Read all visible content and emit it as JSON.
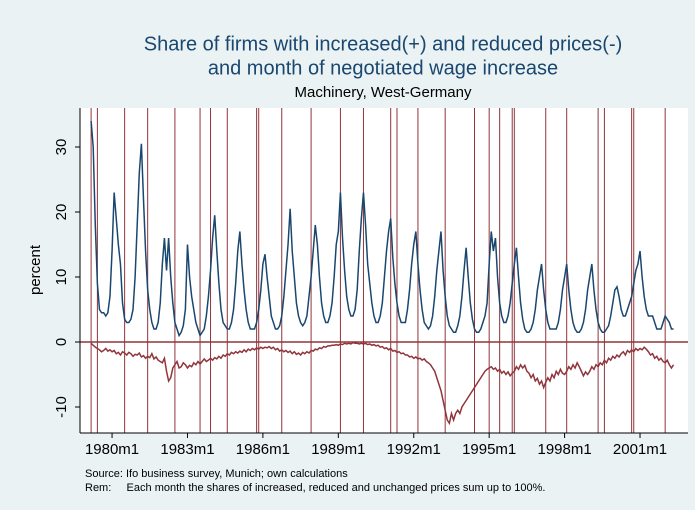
{
  "chart_data": {
    "type": "line",
    "title": [
      "Share of firms with increased(+) and reduced prices(-)",
      "and month of negotiated wage increase"
    ],
    "subtitle": "Machinery, West-Germany",
    "y_label": "percent",
    "notes": [
      "Source: Ifo business survey, Munich; own calculations",
      "Rem:     Each month the shares of increased, reduced and unchanged prices sum up to 100%."
    ],
    "xlim": [
      224.7,
      514.9
    ],
    "xticks": [
      {
        "value": 240,
        "label": "1980m1"
      },
      {
        "value": 276,
        "label": "1983m1"
      },
      {
        "value": 312,
        "label": "1986m1"
      },
      {
        "value": 348,
        "label": "1989m1"
      },
      {
        "value": 384,
        "label": "1992m1"
      },
      {
        "value": 420,
        "label": "1995m1"
      },
      {
        "value": 456,
        "label": "1998m1"
      },
      {
        "value": 492,
        "label": "2001m1"
      }
    ],
    "ylim": [
      -14,
      36
    ],
    "yticks": [
      -10,
      0,
      10,
      20,
      30
    ],
    "grid": false,
    "hline": 0,
    "hline_color": "#90353b",
    "wage_increase_months": [
      230,
      233,
      246,
      257,
      270,
      282,
      287,
      295,
      309,
      310,
      321,
      335,
      349,
      360,
      373,
      376,
      386,
      399,
      413,
      420,
      425,
      431,
      432,
      447,
      457,
      472,
      475,
      488,
      489,
      504
    ],
    "wage_line_color": "#90353b",
    "x": [
      230,
      231,
      232,
      233,
      234,
      235,
      236,
      237,
      238,
      239,
      240,
      241,
      242,
      243,
      244,
      245,
      246,
      247,
      248,
      249,
      250,
      251,
      252,
      253,
      254,
      255,
      256,
      257,
      258,
      259,
      260,
      261,
      262,
      263,
      264,
      265,
      266,
      267,
      268,
      269,
      270,
      271,
      272,
      273,
      274,
      275,
      276,
      277,
      278,
      279,
      280,
      281,
      282,
      283,
      284,
      285,
      286,
      287,
      288,
      289,
      290,
      291,
      292,
      293,
      294,
      295,
      296,
      297,
      298,
      299,
      300,
      301,
      302,
      303,
      304,
      305,
      306,
      307,
      308,
      309,
      310,
      311,
      312,
      313,
      314,
      315,
      316,
      317,
      318,
      319,
      320,
      321,
      322,
      323,
      324,
      325,
      326,
      327,
      328,
      329,
      330,
      331,
      332,
      333,
      334,
      335,
      336,
      337,
      338,
      339,
      340,
      341,
      342,
      343,
      344,
      345,
      346,
      347,
      348,
      349,
      350,
      351,
      352,
      353,
      354,
      355,
      356,
      357,
      358,
      359,
      360,
      361,
      362,
      363,
      364,
      365,
      366,
      367,
      368,
      369,
      370,
      371,
      372,
      373,
      374,
      375,
      376,
      377,
      378,
      379,
      380,
      381,
      382,
      383,
      384,
      385,
      386,
      387,
      388,
      389,
      390,
      391,
      392,
      393,
      394,
      395,
      396,
      397,
      398,
      399,
      400,
      401,
      402,
      403,
      404,
      405,
      406,
      407,
      408,
      409,
      410,
      411,
      412,
      413,
      414,
      415,
      416,
      417,
      418,
      419,
      420,
      421,
      422,
      423,
      424,
      425,
      426,
      427,
      428,
      429,
      430,
      431,
      432,
      433,
      434,
      435,
      436,
      437,
      438,
      439,
      440,
      441,
      442,
      443,
      444,
      445,
      446,
      447,
      448,
      449,
      450,
      451,
      452,
      453,
      454,
      455,
      456,
      457,
      458,
      459,
      460,
      461,
      462,
      463,
      464,
      465,
      466,
      467,
      468,
      469,
      470,
      471,
      472,
      473,
      474,
      475,
      476,
      477,
      478,
      479,
      480,
      481,
      482,
      483,
      484,
      485,
      486,
      487,
      488,
      489,
      490,
      491,
      492,
      493,
      494,
      495,
      496,
      497,
      498,
      499,
      500,
      501,
      502,
      503,
      504,
      505,
      506,
      507,
      508
    ],
    "series": [
      {
        "color": "#1a476f",
        "values": [
          34,
          30,
          18,
          9,
          5,
          4.5,
          4.5,
          4,
          4.5,
          7,
          14,
          23,
          19,
          15,
          12,
          6,
          3.5,
          3,
          3,
          3.5,
          5,
          10,
          18,
          26,
          30.5,
          22,
          14,
          8,
          5,
          3,
          2,
          2,
          3,
          6,
          12,
          16,
          11,
          16,
          10,
          6,
          3,
          2,
          1,
          1.5,
          2.5,
          5,
          15,
          10,
          7,
          5,
          3,
          2,
          1,
          1.5,
          2,
          4,
          7,
          11,
          16,
          19.5,
          14,
          9,
          5,
          3,
          2.5,
          2,
          2,
          3,
          5,
          9,
          14,
          17,
          12,
          8,
          5,
          3,
          2,
          2,
          2,
          3,
          5,
          8,
          12,
          13.5,
          10,
          7,
          4,
          3,
          2,
          2,
          2.5,
          4,
          7,
          11,
          15,
          20.5,
          14,
          10,
          6,
          4,
          3,
          2.5,
          3,
          4,
          7,
          10,
          14,
          18,
          15,
          10,
          6,
          4,
          3,
          3,
          4,
          6,
          10,
          15,
          17,
          23,
          16,
          11,
          7,
          5,
          4,
          4,
          5,
          8,
          14,
          19,
          23,
          18,
          12,
          9,
          6,
          4,
          3,
          3,
          4,
          6,
          10,
          14,
          17,
          19,
          13,
          9,
          6,
          4,
          3,
          3,
          3,
          5,
          8,
          12,
          15,
          17,
          12,
          8,
          5,
          3,
          2.5,
          2,
          2.5,
          4,
          7,
          11,
          14,
          17,
          11,
          7,
          4,
          2.5,
          2,
          1.5,
          1.5,
          2.5,
          4,
          7,
          11,
          14.5,
          10,
          6,
          3.5,
          2,
          1.5,
          1.5,
          2,
          3,
          4,
          6,
          12,
          17,
          14,
          16,
          10,
          6,
          4,
          3,
          3,
          4,
          6,
          9,
          12,
          14.5,
          10,
          6,
          3.5,
          2,
          1.5,
          1.5,
          2,
          3,
          5,
          8,
          10,
          12,
          8,
          5,
          3,
          2,
          2,
          2,
          2,
          3,
          5,
          8,
          10,
          12,
          8,
          5,
          3,
          2,
          1.5,
          1.5,
          2,
          3,
          5,
          8,
          10,
          12,
          8,
          5,
          3,
          2,
          1.5,
          1.5,
          2,
          2.5,
          4,
          6,
          8,
          8.5,
          7,
          5,
          4,
          4,
          5,
          6,
          7,
          9,
          11,
          12,
          14,
          10,
          7,
          5,
          4,
          4,
          4,
          3,
          2,
          2,
          2,
          3,
          4,
          3.5,
          3,
          2,
          2
        ]
      },
      {
        "color": "#90353b",
        "values": [
          -0.2,
          -0.5,
          -0.8,
          -1,
          -1.2,
          -1.5,
          -1.3,
          -1,
          -1.4,
          -1.2,
          -1.5,
          -1.3,
          -1.8,
          -1.6,
          -2,
          -1.5,
          -1.7,
          -2,
          -1.6,
          -1.8,
          -2.2,
          -1.9,
          -2,
          -1.7,
          -2.3,
          -2.1,
          -2.5,
          -2.2,
          -2.4,
          -1.8,
          -2.6,
          -2.3,
          -2.8,
          -3,
          -3.2,
          -2.5,
          -4.5,
          -6,
          -5.5,
          -4,
          -3.5,
          -3,
          -4,
          -3.8,
          -3.2,
          -3.5,
          -4,
          -3.6,
          -3.8,
          -3.2,
          -3.5,
          -3,
          -3.4,
          -3,
          -2.6,
          -3,
          -2.8,
          -2.5,
          -2.8,
          -2.4,
          -2.6,
          -2.2,
          -2.5,
          -2,
          -2.2,
          -1.8,
          -2,
          -1.6,
          -1.8,
          -1.5,
          -1.7,
          -1.4,
          -1.6,
          -1.2,
          -1.5,
          -1.1,
          -1.3,
          -1,
          -1.2,
          -0.9,
          -1.1,
          -0.8,
          -1,
          -0.8,
          -0.9,
          -0.7,
          -1,
          -0.8,
          -1.2,
          -1,
          -1.4,
          -1.2,
          -1.5,
          -1.3,
          -1.6,
          -1.4,
          -1.8,
          -1.5,
          -1.9,
          -1.7,
          -2,
          -1.6,
          -1.8,
          -1.5,
          -1.7,
          -1.3,
          -1.4,
          -1.1,
          -1.2,
          -0.9,
          -1,
          -0.7,
          -0.8,
          -0.6,
          -0.6,
          -0.5,
          -0.5,
          -0.4,
          -0.5,
          -0.3,
          -0.4,
          -0.2,
          -0.3,
          -0.2,
          -0.3,
          -0.1,
          -0.2,
          -0.2,
          -0.3,
          -0.2,
          -0.3,
          -0.2,
          -0.4,
          -0.3,
          -0.5,
          -0.4,
          -0.6,
          -0.5,
          -0.8,
          -0.7,
          -1,
          -0.9,
          -1.2,
          -1,
          -1.4,
          -1.3,
          -1.6,
          -1.5,
          -1.8,
          -1.7,
          -2,
          -2,
          -2.3,
          -2.2,
          -2.5,
          -2.3,
          -2.6,
          -2.5,
          -2.8,
          -2.6,
          -3,
          -3.2,
          -3.5,
          -4,
          -4.5,
          -5.5,
          -6.5,
          -7.5,
          -9,
          -10.5,
          -12,
          -12.5,
          -11,
          -12,
          -11,
          -10.5,
          -11,
          -10,
          -9.5,
          -9,
          -8.5,
          -8,
          -7.5,
          -7,
          -6.5,
          -6,
          -5.5,
          -5,
          -4.5,
          -4.2,
          -4,
          -3.8,
          -4.2,
          -4,
          -4.5,
          -4.2,
          -4.8,
          -4.5,
          -5,
          -4.6,
          -5.2,
          -4.8,
          -4.5,
          -3.8,
          -4.2,
          -3.5,
          -4,
          -3.6,
          -4.5,
          -4.8,
          -5.5,
          -5,
          -6,
          -5.6,
          -6.5,
          -6,
          -7,
          -6.2,
          -5.5,
          -6,
          -5,
          -5.5,
          -4.5,
          -5,
          -4.2,
          -4.8,
          -5,
          -4.5,
          -3.8,
          -4.2,
          -3.5,
          -4,
          -3.2,
          -3.8,
          -4.5,
          -5.2,
          -4.6,
          -5,
          -4.5,
          -3.8,
          -4.2,
          -3.5,
          -3.8,
          -3.2,
          -3.5,
          -2.8,
          -3.2,
          -2.5,
          -2.8,
          -2.2,
          -2.5,
          -2,
          -2.3,
          -1.8,
          -1.5,
          -2,
          -1.3,
          -1.6,
          -1.2,
          -1.5,
          -1,
          -1.3,
          -1,
          -1.2,
          -0.8,
          -1.1,
          -1.5,
          -2,
          -1.8,
          -2.5,
          -2.2,
          -2.8,
          -2.5,
          -3,
          -3.2,
          -2.8,
          -3.5,
          -4,
          -3.5
        ]
      }
    ]
  }
}
